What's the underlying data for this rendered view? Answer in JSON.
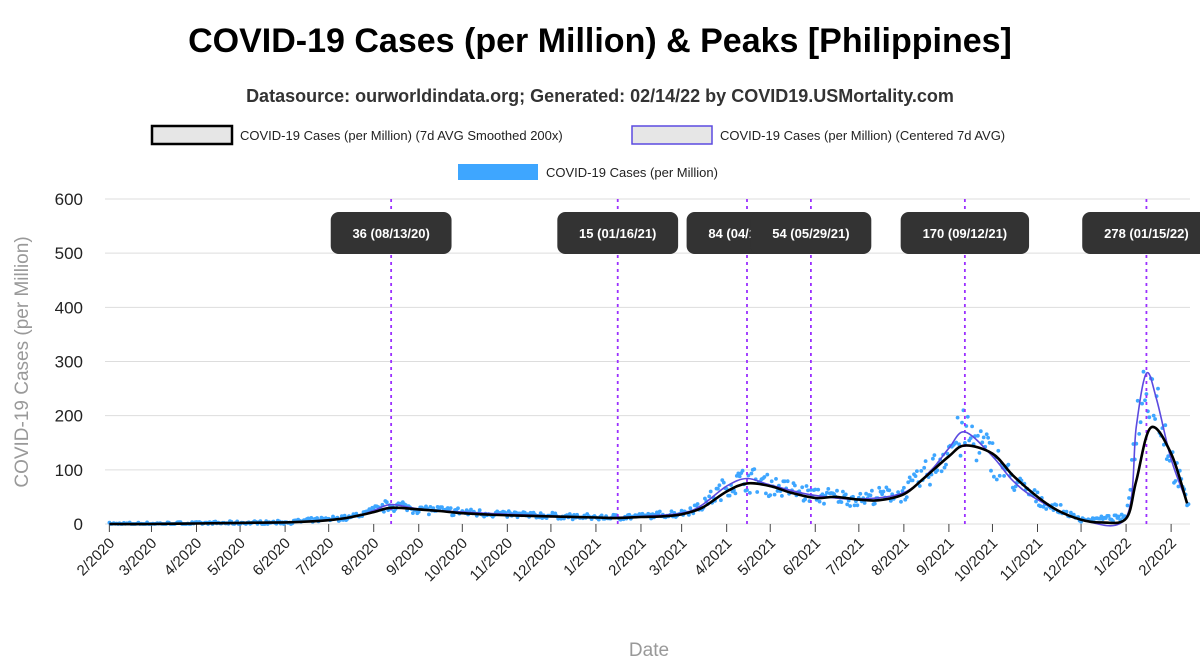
{
  "chart_data": {
    "type": "line",
    "title": "COVID-19 Cases (per Million) & Peaks [Philippines]",
    "subtitle": "Datasource: ourworldindata.org; Generated: 02/14/22 by COVID19.USMortality.com",
    "xlabel": "Date",
    "ylabel": "COVID-19 Cases (per Million)",
    "ylim": [
      0,
      600
    ],
    "yticks": [
      0,
      100,
      200,
      300,
      400,
      500,
      600
    ],
    "xlim": [
      "2020-01-29",
      "2022-02-14"
    ],
    "xtick_labels": [
      "2/2020",
      "3/2020",
      "4/2020",
      "5/2020",
      "6/2020",
      "7/2020",
      "8/2020",
      "9/2020",
      "10/2020",
      "11/2020",
      "12/2020",
      "1/2021",
      "2/2021",
      "3/2021",
      "4/2021",
      "5/2021",
      "6/2021",
      "7/2021",
      "8/2021",
      "9/2021",
      "10/2021",
      "11/2021",
      "12/2021",
      "1/2022",
      "2/2022"
    ],
    "xtick_dates": [
      "2020-02-01",
      "2020-03-01",
      "2020-04-01",
      "2020-05-01",
      "2020-06-01",
      "2020-07-01",
      "2020-08-01",
      "2020-09-01",
      "2020-10-01",
      "2020-11-01",
      "2020-12-01",
      "2021-01-01",
      "2021-02-01",
      "2021-03-01",
      "2021-04-01",
      "2021-05-01",
      "2021-06-01",
      "2021-07-01",
      "2021-08-01",
      "2021-09-01",
      "2021-10-01",
      "2021-11-01",
      "2021-12-01",
      "2022-01-01",
      "2022-02-01"
    ],
    "grid": true,
    "legend_placement": "top",
    "legend": [
      {
        "name": "COVID-19 Cases (per Million) (7d AVG Smoothed 200x)",
        "style": "box",
        "fill": "#e6e6e6",
        "stroke": "#000000"
      },
      {
        "name": "COVID-19 Cases (per Million) (Centered 7d AVG)",
        "style": "box",
        "fill": "#e6e6e6",
        "stroke": "#5b4ae0"
      },
      {
        "name": "COVID-19 Cases (per Million)",
        "style": "solid",
        "fill": "#3ea6ff"
      }
    ],
    "series": [
      {
        "name": "COVID-19 Cases (per Million) (7d AVG Smoothed 200x)",
        "color": "#000000",
        "x": [
          "2020-02-01",
          "2020-03-01",
          "2020-04-01",
          "2020-05-01",
          "2020-06-01",
          "2020-06-20",
          "2020-07-01",
          "2020-07-15",
          "2020-08-01",
          "2020-08-13",
          "2020-09-01",
          "2020-09-15",
          "2020-10-01",
          "2020-10-15",
          "2020-11-01",
          "2020-12-01",
          "2021-01-01",
          "2021-01-16",
          "2021-02-01",
          "2021-02-15",
          "2021-03-01",
          "2021-03-15",
          "2021-04-01",
          "2021-04-15",
          "2021-05-01",
          "2021-05-15",
          "2021-06-01",
          "2021-06-15",
          "2021-07-01",
          "2021-07-15",
          "2021-08-01",
          "2021-08-15",
          "2021-09-01",
          "2021-09-12",
          "2021-10-01",
          "2021-10-15",
          "2021-11-01",
          "2021-11-15",
          "2021-12-01",
          "2021-12-15",
          "2022-01-01",
          "2022-01-08",
          "2022-01-18",
          "2022-02-01",
          "2022-02-12"
        ],
        "values": [
          0,
          0,
          1,
          2,
          3,
          5,
          7,
          12,
          22,
          30,
          27,
          24,
          20,
          18,
          16,
          14,
          12,
          11,
          13,
          14,
          18,
          30,
          60,
          75,
          70,
          58,
          48,
          50,
          45,
          44,
          55,
          85,
          125,
          145,
          130,
          90,
          50,
          25,
          8,
          3,
          10,
          80,
          178,
          130,
          38
        ]
      },
      {
        "name": "COVID-19 Cases (per Million) (Centered 7d AVG)",
        "color": "#5b4ae0",
        "x": [
          "2020-02-01",
          "2020-04-01",
          "2020-06-01",
          "2020-07-15",
          "2020-08-01",
          "2020-08-13",
          "2020-09-01",
          "2020-10-01",
          "2020-11-01",
          "2020-12-01",
          "2021-01-01",
          "2021-02-01",
          "2021-03-01",
          "2021-03-15",
          "2021-04-01",
          "2021-04-15",
          "2021-05-01",
          "2021-05-29",
          "2021-07-01",
          "2021-08-01",
          "2021-08-20",
          "2021-09-01",
          "2021-09-12",
          "2021-10-01",
          "2021-10-15",
          "2021-11-01",
          "2021-12-01",
          "2022-01-01",
          "2022-01-08",
          "2022-01-15",
          "2022-01-22",
          "2022-02-01",
          "2022-02-12"
        ],
        "values": [
          0,
          1,
          3,
          12,
          25,
          36,
          28,
          22,
          18,
          15,
          12,
          14,
          20,
          35,
          70,
          84,
          72,
          54,
          46,
          58,
          100,
          140,
          170,
          125,
          80,
          45,
          8,
          12,
          180,
          278,
          230,
          120,
          40
        ]
      },
      {
        "name": "COVID-19 Cases (per Million)",
        "color": "#3ea6ff",
        "kind": "daily scatter (approximated)"
      }
    ],
    "peaks": [
      {
        "date": "2020-08-13",
        "label": "36 (08/13/20)"
      },
      {
        "date": "2021-01-16",
        "label": "15 (01/16/21)"
      },
      {
        "date": "2021-04-15",
        "label": "84 (04/15/21)"
      },
      {
        "date": "2021-05-29",
        "label": "54 (05/29/21)"
      },
      {
        "date": "2021-09-12",
        "label": "170 (09/12/21)"
      },
      {
        "date": "2022-01-15",
        "label": "278 (01/15/22)"
      }
    ]
  }
}
